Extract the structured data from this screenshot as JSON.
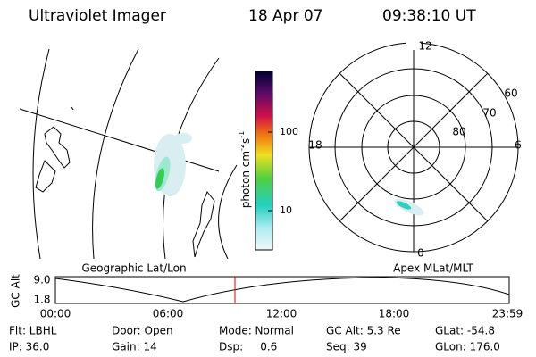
{
  "header": {
    "title": "Ultraviolet Imager",
    "date": "18 Apr 07",
    "time": "09:38:10 UT"
  },
  "colorbar": {
    "label": [
      "photon cm",
      "-2",
      "s",
      "-1"
    ],
    "ticks": [
      "100",
      "10"
    ]
  },
  "polar": {
    "hours": [
      "12",
      "18",
      "6",
      "0"
    ],
    "latitudes": [
      "60",
      "70",
      "80"
    ]
  },
  "altitude_plot": {
    "left_title": "Geographic Lat/Lon",
    "right_title": "Apex MLat/MLT",
    "ylabel": "GC Alt",
    "yticks": [
      "9.0",
      "1.8"
    ],
    "xticks": [
      "00:00",
      "06:00",
      "12:00",
      "18:00",
      "23:59"
    ]
  },
  "footer": {
    "rows": [
      [
        "Flt: LBHL",
        "Door: Open",
        "Mode: Normal",
        "GC Alt: 5.3 Re",
        "GLat: -54.8"
      ],
      [
        "IP: 36.0",
        "Gain: 14",
        "Dsp:     0.6",
        "Seq: 39",
        "GLon: 176.0"
      ]
    ]
  }
}
